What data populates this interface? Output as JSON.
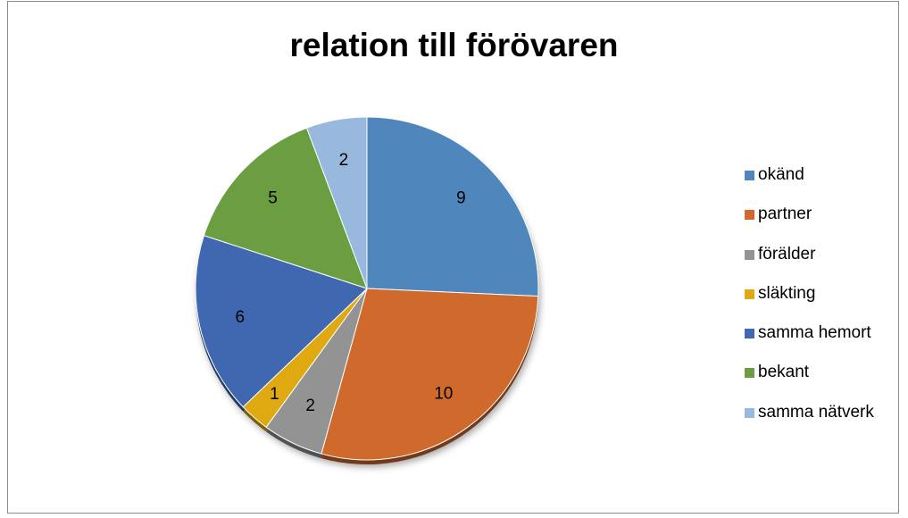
{
  "chart_data": {
    "type": "pie",
    "title": "relation till förövaren",
    "categories": [
      "okänd",
      "partner",
      "förälder",
      "släkting",
      "samma hemort",
      "bekant",
      "samma nätverk"
    ],
    "values": [
      9,
      10,
      2,
      1,
      6,
      5,
      2
    ],
    "colors": [
      "#4f86bb",
      "#cf6a2c",
      "#939393",
      "#dfa912",
      "#4068b0",
      "#6a9e40",
      "#98b8de"
    ],
    "data_labels": [
      "9",
      "10",
      "2",
      "1",
      "6",
      "5",
      "2"
    ],
    "legend_position": "right",
    "start_angle": "top, clockwise"
  }
}
